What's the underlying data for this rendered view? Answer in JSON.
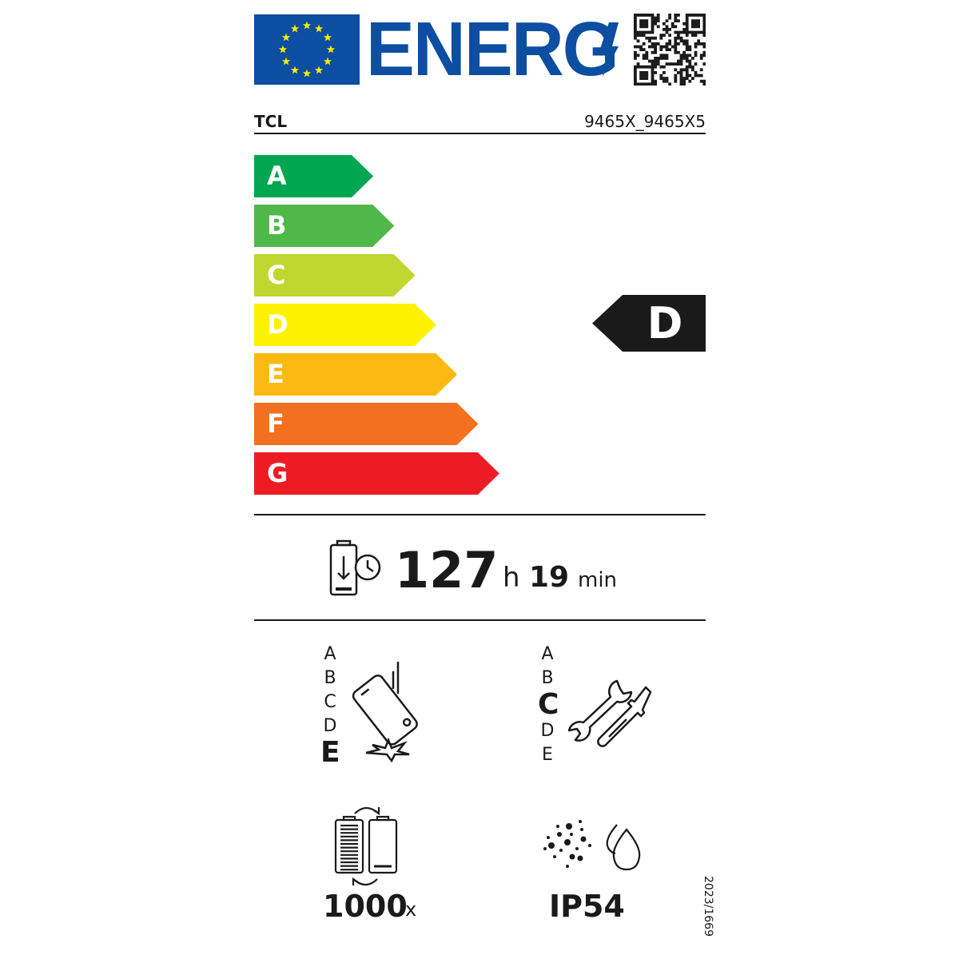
{
  "header": {
    "energy_wordmark": "ENERG",
    "eu_flag_icon": "eu-flag-icon",
    "qr_icon": "qr-code-icon",
    "brand": "TCL",
    "model": "9465X_9465X5",
    "brand_color": "#0b4ea2"
  },
  "energy_scale": {
    "classes": [
      {
        "letter": "A",
        "color": "#00a650"
      },
      {
        "letter": "B",
        "color": "#50b848"
      },
      {
        "letter": "C",
        "color": "#bfd730"
      },
      {
        "letter": "D",
        "color": "#fff200"
      },
      {
        "letter": "E",
        "color": "#fdb913"
      },
      {
        "letter": "F",
        "color": "#f37021"
      },
      {
        "letter": "G",
        "color": "#ed1c24"
      }
    ],
    "rating": "D"
  },
  "battery_endurance": {
    "icon": "battery-endurance-icon",
    "hours": "127",
    "hours_unit": "h",
    "minutes": "19",
    "minutes_unit": "min"
  },
  "drop_resistance": {
    "icon": "phone-drop-icon",
    "scale": [
      "A",
      "B",
      "C",
      "D",
      "E"
    ],
    "rating": "E"
  },
  "repairability": {
    "icon": "wrench-screwdriver-icon",
    "scale": [
      "A",
      "B",
      "C",
      "D",
      "E"
    ],
    "rating": "C"
  },
  "battery_cycles": {
    "icon": "battery-cycles-icon",
    "value": "1000",
    "unit": "x"
  },
  "ingress_protection": {
    "icon": "dust-water-icon",
    "value": "IP54"
  },
  "regulation": "2023/1669"
}
